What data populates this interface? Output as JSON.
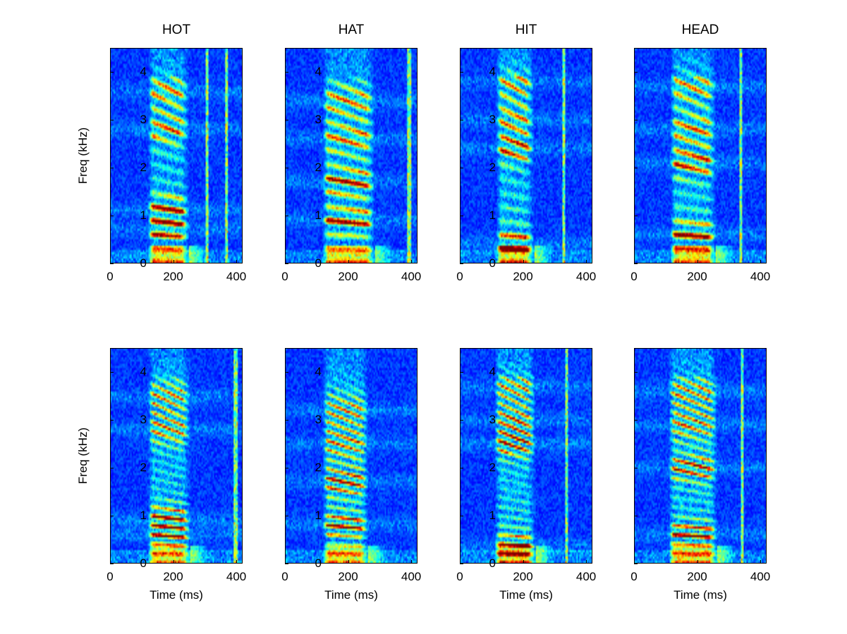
{
  "chart_data": [
    {
      "type": "heatmap",
      "title": "HOT",
      "xlabel": "",
      "ylabel": "Freq (kHz)",
      "xlim": [
        0,
        420
      ],
      "ylim": [
        0,
        4.5
      ],
      "xticks": [
        0,
        200,
        400
      ],
      "yticks": [
        0,
        1,
        2,
        3,
        4
      ],
      "colormap": "jet",
      "voicing_ms": [
        120,
        250
      ],
      "harmonic_spacing_khz": 0.3,
      "formants_khz": [
        0.7,
        1.1,
        2.8,
        3.6
      ],
      "bursts_ms": [
        310,
        370
      ]
    },
    {
      "type": "heatmap",
      "title": "HAT",
      "xlabel": "",
      "ylabel": "",
      "xlim": [
        0,
        420
      ],
      "ylim": [
        0,
        4.5
      ],
      "xticks": [
        0,
        200,
        400
      ],
      "yticks": [
        0,
        1,
        2,
        3,
        4
      ],
      "colormap": "jet",
      "voicing_ms": [
        120,
        285
      ],
      "harmonic_spacing_khz": 0.3,
      "formants_khz": [
        0.9,
        1.7,
        2.6,
        3.4
      ],
      "bursts_ms": [
        395
      ]
    },
    {
      "type": "heatmap",
      "title": "HIT",
      "xlabel": "",
      "ylabel": "",
      "xlim": [
        0,
        420
      ],
      "ylim": [
        0,
        4.5
      ],
      "xticks": [
        0,
        200,
        400
      ],
      "yticks": [
        0,
        1,
        2,
        3,
        4
      ],
      "colormap": "jet",
      "voicing_ms": [
        115,
        235
      ],
      "harmonic_spacing_khz": 0.3,
      "formants_khz": [
        0.4,
        2.4,
        3.0,
        3.8
      ],
      "bursts_ms": [
        330
      ]
    },
    {
      "type": "heatmap",
      "title": "HEAD",
      "xlabel": "",
      "ylabel": "",
      "xlim": [
        0,
        420
      ],
      "ylim": [
        0,
        4.5
      ],
      "xticks": [
        0,
        200,
        400
      ],
      "yticks": [
        0,
        1,
        2,
        3,
        4
      ],
      "colormap": "jet",
      "voicing_ms": [
        115,
        260
      ],
      "harmonic_spacing_khz": 0.3,
      "formants_khz": [
        0.6,
        2.1,
        2.8,
        3.7
      ],
      "bursts_ms": [
        340
      ]
    },
    {
      "type": "heatmap",
      "title": "",
      "xlabel": "Time (ms)",
      "ylabel": "Freq (kHz)",
      "xlim": [
        0,
        420
      ],
      "ylim": [
        0,
        4.5
      ],
      "xticks": [
        0,
        200,
        400
      ],
      "yticks": [
        0,
        1,
        2,
        3,
        4
      ],
      "colormap": "jet",
      "voicing_ms": [
        120,
        255
      ],
      "harmonic_spacing_khz": 0.2,
      "formants_khz": [
        0.6,
        0.9,
        2.8,
        3.5
      ],
      "bursts_ms": [
        400
      ]
    },
    {
      "type": "heatmap",
      "title": "",
      "xlabel": "Time (ms)",
      "ylabel": "",
      "xlim": [
        0,
        420
      ],
      "ylim": [
        0,
        4.5
      ],
      "xticks": [
        0,
        200,
        400
      ],
      "yticks": [
        0,
        1,
        2,
        3,
        4
      ],
      "colormap": "jet",
      "voicing_ms": [
        120,
        265
      ],
      "harmonic_spacing_khz": 0.2,
      "formants_khz": [
        0.8,
        1.7,
        2.5,
        3.2
      ],
      "bursts_ms": []
    },
    {
      "type": "heatmap",
      "title": "",
      "xlabel": "Time (ms)",
      "ylabel": "",
      "xlim": [
        0,
        420
      ],
      "ylim": [
        0,
        4.5
      ],
      "xticks": [
        0,
        200,
        400
      ],
      "yticks": [
        0,
        1,
        2,
        3,
        4
      ],
      "colormap": "jet",
      "voicing_ms": [
        110,
        240
      ],
      "harmonic_spacing_khz": 0.2,
      "formants_khz": [
        0.35,
        2.5,
        3.0,
        3.7
      ],
      "bursts_ms": [
        340
      ]
    },
    {
      "type": "heatmap",
      "title": "",
      "xlabel": "Time (ms)",
      "ylabel": "",
      "xlim": [
        0,
        420
      ],
      "ylim": [
        0,
        4.5
      ],
      "xticks": [
        0,
        200,
        400
      ],
      "yticks": [
        0,
        1,
        2,
        3,
        4
      ],
      "colormap": "jet",
      "voicing_ms": [
        110,
        265
      ],
      "harmonic_spacing_khz": 0.2,
      "formants_khz": [
        0.6,
        2.0,
        2.9,
        3.6
      ],
      "bursts_ms": [
        345
      ]
    }
  ]
}
